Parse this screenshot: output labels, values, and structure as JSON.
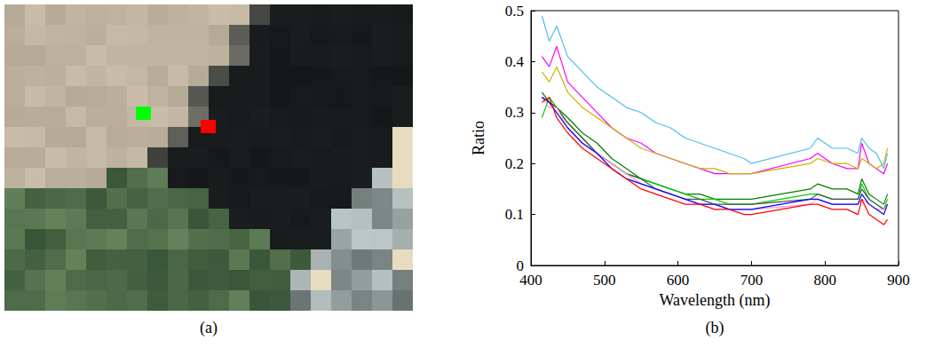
{
  "chart_data": [
    {
      "type": "image",
      "caption": "(a)",
      "markers": [
        {
          "color": "#00ff00"
        },
        {
          "color": "#ff0000"
        }
      ]
    },
    {
      "type": "line",
      "caption": "(b)",
      "xlabel": "Wavelength (nm)",
      "ylabel": "Ratio",
      "xlim": [
        400,
        900
      ],
      "xticks": [
        400,
        500,
        600,
        700,
        800,
        900
      ],
      "ylim": [
        0,
        0.5
      ],
      "yticks": [
        0,
        0.1,
        0.2,
        0.3,
        0.4,
        0.5
      ],
      "grid": false,
      "x": [
        415,
        425,
        435,
        450,
        470,
        490,
        510,
        530,
        550,
        570,
        590,
        610,
        630,
        650,
        670,
        690,
        700,
        780,
        790,
        810,
        830,
        845,
        850,
        860,
        870,
        880,
        885
      ],
      "series": [
        {
          "color": "#4dbeee",
          "values": [
            0.49,
            0.44,
            0.47,
            0.41,
            0.38,
            0.35,
            0.33,
            0.31,
            0.3,
            0.28,
            0.27,
            0.25,
            0.24,
            0.23,
            0.22,
            0.21,
            0.2,
            0.23,
            0.25,
            0.23,
            0.23,
            0.22,
            0.25,
            0.23,
            0.22,
            0.19,
            0.22
          ]
        },
        {
          "color": "#ff00ff",
          "values": [
            0.41,
            0.39,
            0.43,
            0.36,
            0.33,
            0.3,
            0.27,
            0.25,
            0.24,
            0.22,
            0.21,
            0.2,
            0.19,
            0.18,
            0.18,
            0.18,
            0.18,
            0.21,
            0.22,
            0.2,
            0.19,
            0.19,
            0.24,
            0.2,
            0.19,
            0.18,
            0.2
          ]
        },
        {
          "color": "#c8b400",
          "values": [
            0.38,
            0.36,
            0.39,
            0.34,
            0.31,
            0.29,
            0.27,
            0.25,
            0.23,
            0.22,
            0.21,
            0.2,
            0.19,
            0.19,
            0.18,
            0.18,
            0.18,
            0.2,
            0.21,
            0.2,
            0.2,
            0.19,
            0.21,
            0.2,
            0.19,
            0.2,
            0.23
          ]
        },
        {
          "color": "#007f00",
          "values": [
            0.34,
            0.32,
            0.31,
            0.29,
            0.26,
            0.24,
            0.21,
            0.19,
            0.17,
            0.16,
            0.15,
            0.14,
            0.14,
            0.13,
            0.13,
            0.13,
            0.13,
            0.15,
            0.16,
            0.15,
            0.15,
            0.14,
            0.17,
            0.14,
            0.13,
            0.12,
            0.14
          ]
        },
        {
          "color": "#00cc00",
          "values": [
            0.29,
            0.33,
            0.31,
            0.28,
            0.25,
            0.22,
            0.2,
            0.18,
            0.17,
            0.16,
            0.15,
            0.14,
            0.13,
            0.13,
            0.12,
            0.12,
            0.12,
            0.14,
            0.14,
            0.13,
            0.13,
            0.13,
            0.16,
            0.13,
            0.12,
            0.11,
            0.13
          ]
        },
        {
          "color": "#505050",
          "values": [
            0.33,
            0.32,
            0.31,
            0.28,
            0.25,
            0.22,
            0.2,
            0.18,
            0.17,
            0.15,
            0.14,
            0.13,
            0.13,
            0.12,
            0.12,
            0.12,
            0.12,
            0.13,
            0.14,
            0.13,
            0.13,
            0.13,
            0.15,
            0.13,
            0.12,
            0.11,
            0.12
          ]
        },
        {
          "color": "#ff99cc",
          "values": [
            0.33,
            0.31,
            0.31,
            0.27,
            0.24,
            0.22,
            0.2,
            0.18,
            0.16,
            0.15,
            0.14,
            0.13,
            0.12,
            0.12,
            0.11,
            0.11,
            0.11,
            0.12,
            0.13,
            0.12,
            0.12,
            0.12,
            0.13,
            0.12,
            0.11,
            0.11,
            0.12
          ]
        },
        {
          "color": "#0000ff",
          "values": [
            0.33,
            0.32,
            0.3,
            0.27,
            0.24,
            0.22,
            0.19,
            0.17,
            0.16,
            0.15,
            0.14,
            0.13,
            0.12,
            0.12,
            0.11,
            0.11,
            0.11,
            0.13,
            0.13,
            0.12,
            0.12,
            0.12,
            0.14,
            0.12,
            0.11,
            0.1,
            0.12
          ]
        },
        {
          "color": "#ff0000",
          "values": [
            0.32,
            0.33,
            0.29,
            0.26,
            0.23,
            0.21,
            0.19,
            0.17,
            0.15,
            0.14,
            0.13,
            0.12,
            0.12,
            0.11,
            0.11,
            0.1,
            0.1,
            0.12,
            0.12,
            0.11,
            0.11,
            0.1,
            0.13,
            0.1,
            0.09,
            0.08,
            0.09
          ]
        }
      ]
    }
  ]
}
